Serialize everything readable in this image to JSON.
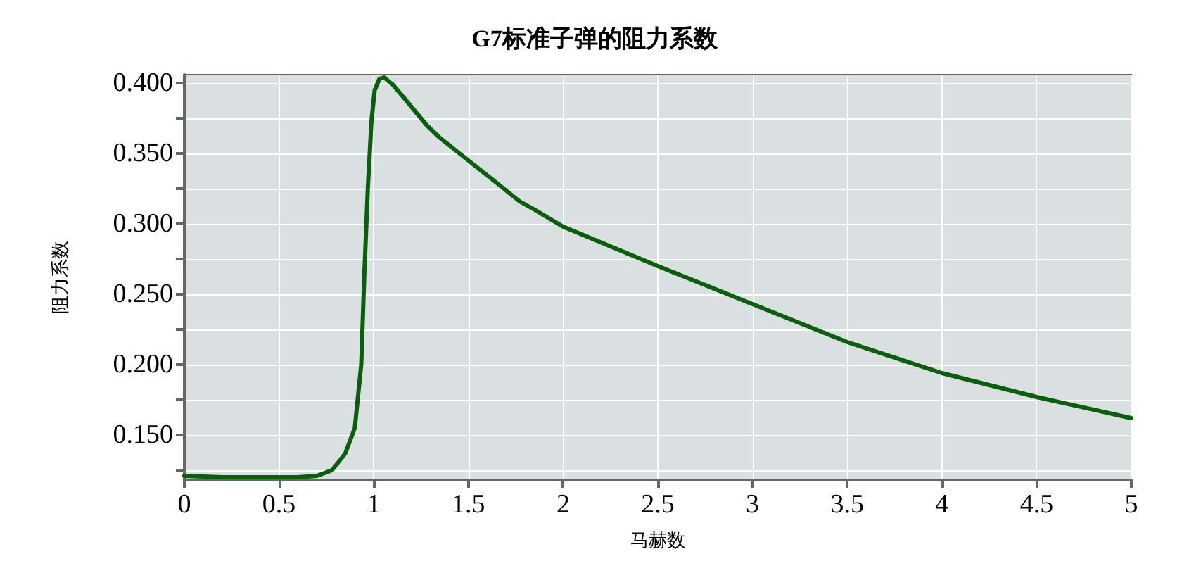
{
  "chart_data": {
    "type": "line",
    "title": "G7标准子弹的阻力系数",
    "xlabel": "马赫数",
    "ylabel": "阻力系数",
    "x": [
      0,
      0.2,
      0.4,
      0.6,
      0.7,
      0.78,
      0.85,
      0.9,
      0.934,
      0.95,
      0.969,
      0.988,
      1.005,
      1.03,
      1.054,
      1.1,
      1.163,
      1.2,
      1.28,
      1.35,
      1.5,
      1.65,
      1.77,
      1.85,
      2.0,
      2.5,
      3.0,
      3.5,
      4.0,
      4.5,
      5.0
    ],
    "series": [
      {
        "color": "#0b5e0b",
        "values": [
          0.121,
          0.12,
          0.12,
          0.12,
          0.121,
          0.125,
          0.137,
          0.155,
          0.2,
          0.263,
          0.326,
          0.373,
          0.395,
          0.403,
          0.404,
          0.399,
          0.389,
          0.383,
          0.37,
          0.361,
          0.345,
          0.329,
          0.316,
          0.31,
          0.298,
          0.27,
          0.243,
          0.216,
          0.194,
          0.177,
          0.162
        ]
      }
    ],
    "xlim": [
      0,
      5
    ],
    "xticks": [
      0,
      0.5,
      1,
      1.5,
      2,
      2.5,
      3,
      3.5,
      4,
      4.5,
      5
    ],
    "ylim": [
      0.118,
      0.406
    ],
    "yticks": [
      {
        "value": 0.125,
        "label": null
      },
      {
        "value": 0.15,
        "label": "0.150"
      },
      {
        "value": 0.175,
        "label": null
      },
      {
        "value": 0.2,
        "label": "0.200"
      },
      {
        "value": 0.225,
        "label": null
      },
      {
        "value": 0.25,
        "label": "0.250"
      },
      {
        "value": 0.275,
        "label": null
      },
      {
        "value": 0.3,
        "label": "0.300"
      },
      {
        "value": 0.325,
        "label": null
      },
      {
        "value": 0.35,
        "label": "0.350"
      },
      {
        "value": 0.375,
        "label": null
      },
      {
        "value": 0.4,
        "label": "0.400"
      }
    ],
    "grid": true,
    "marker": "none",
    "line_style": "solid"
  }
}
